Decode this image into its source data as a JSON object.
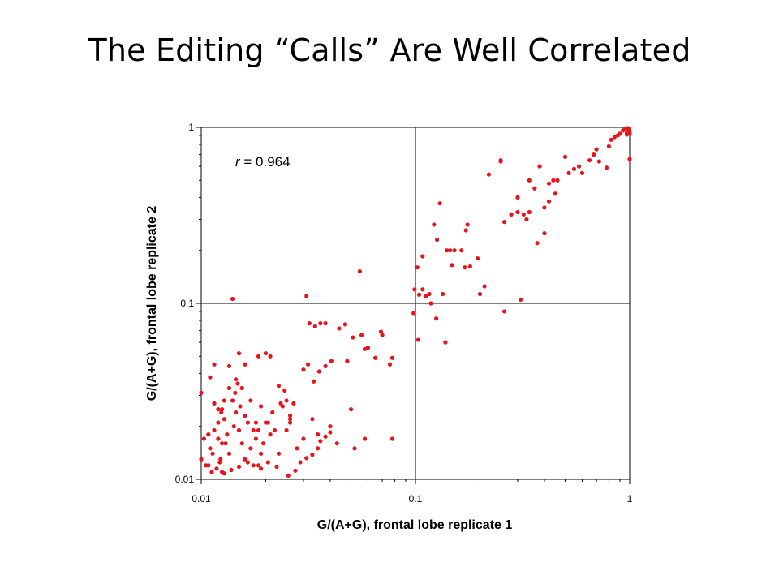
{
  "slide": {
    "title": "The Editing “Calls” Are Well Correlated"
  },
  "chart_data": {
    "type": "scatter",
    "x_scale": "log",
    "y_scale": "log",
    "xlim": [
      0.01,
      1
    ],
    "ylim": [
      0.01,
      1
    ],
    "xlabel": "G/(A+G), frontal lobe replicate 1",
    "ylabel": "G/(A+G), frontal lobe replicate 2",
    "x_tick_labels": [
      "0.01",
      "0.1",
      "1"
    ],
    "y_tick_labels": [
      "0.01",
      "0.1",
      "1"
    ],
    "grid": false,
    "reference_lines": {
      "x": 0.1,
      "y": 0.1
    },
    "annotation": {
      "italic": "r",
      "text": " = 0.964"
    },
    "marker_color": "#e8141b",
    "x": [
      0.01,
      0.01,
      0.0105,
      0.011,
      0.0103,
      0.0108,
      0.0115,
      0.012,
      0.0113,
      0.0125,
      0.0123,
      0.0125,
      0.012,
      0.0128,
      0.0132,
      0.013,
      0.0135,
      0.0142,
      0.0145,
      0.014,
      0.0144,
      0.0152,
      0.016,
      0.015,
      0.0155,
      0.016,
      0.017,
      0.0175,
      0.018,
      0.018,
      0.019,
      0.0185,
      0.02,
      0.021,
      0.0195,
      0.022,
      0.023,
      0.019,
      0.017,
      0.0155,
      0.0148,
      0.0135,
      0.0125,
      0.0115,
      0.0108,
      0.0112,
      0.0118,
      0.0122,
      0.0128,
      0.0138,
      0.015,
      0.0165,
      0.0175,
      0.019,
      0.0205,
      0.0225,
      0.0255,
      0.0275,
      0.029,
      0.031,
      0.033,
      0.035,
      0.036,
      0.038,
      0.04,
      0.03,
      0.028,
      0.026,
      0.025,
      0.0245,
      0.0235,
      0.0215,
      0.03,
      0.0315,
      0.0335,
      0.0355,
      0.038,
      0.0405,
      0.048,
      0.051,
      0.056,
      0.06,
      0.065,
      0.07,
      0.076,
      0.078,
      0.05,
      0.047,
      0.044,
      0.038,
      0.036,
      0.034,
      0.032,
      0.026,
      0.024,
      0.023,
      0.021,
      0.02,
      0.0185,
      0.016,
      0.015,
      0.0145,
      0.0135,
      0.0128,
      0.0124,
      0.012,
      0.0115,
      0.011,
      0.0165,
      0.0185,
      0.0205,
      0.014,
      0.031,
      0.055,
      0.058,
      0.04,
      0.043,
      0.035,
      0.033,
      0.078,
      0.026,
      0.027,
      0.025,
      0.052,
      0.058,
      0.069,
      0.098,
      0.099,
      0.104,
      0.102,
      0.108,
      0.116,
      0.122,
      0.126,
      0.13,
      0.134,
      0.14,
      0.148,
      0.152,
      0.164,
      0.172,
      0.18,
      0.195,
      0.2,
      0.21,
      0.22,
      0.25,
      0.26,
      0.28,
      0.3,
      0.31,
      0.32,
      0.33,
      0.34,
      0.36,
      0.38,
      0.4,
      0.42,
      0.44,
      0.46,
      0.5,
      0.52,
      0.55,
      0.58,
      0.6,
      0.65,
      0.68,
      0.7,
      0.72,
      0.78,
      0.8,
      0.82,
      0.85,
      0.88,
      0.9,
      0.93,
      0.95,
      0.97,
      0.98,
      1.0,
      1.0,
      0.99,
      0.97,
      0.118,
      0.112,
      0.145,
      0.17,
      0.26,
      0.125,
      0.103,
      0.3,
      0.34,
      0.42,
      0.37,
      0.25,
      0.175,
      0.138,
      0.108,
      0.45,
      0.4,
      1.0
    ],
    "y": [
      0.031,
      0.013,
      0.012,
      0.015,
      0.017,
      0.018,
      0.019,
      0.017,
      0.014,
      0.016,
      0.013,
      0.011,
      0.025,
      0.022,
      0.018,
      0.016,
      0.014,
      0.02,
      0.024,
      0.028,
      0.031,
      0.026,
      0.023,
      0.019,
      0.016,
      0.013,
      0.015,
      0.019,
      0.021,
      0.017,
      0.014,
      0.012,
      0.021,
      0.018,
      0.016,
      0.019,
      0.014,
      0.026,
      0.028,
      0.033,
      0.035,
      0.044,
      0.025,
      0.045,
      0.012,
      0.011,
      0.0115,
      0.0125,
      0.0108,
      0.0113,
      0.0118,
      0.0125,
      0.012,
      0.0115,
      0.0125,
      0.0118,
      0.0105,
      0.0112,
      0.0125,
      0.0132,
      0.0138,
      0.015,
      0.0165,
      0.0175,
      0.0185,
      0.017,
      0.015,
      0.022,
      0.028,
      0.032,
      0.027,
      0.024,
      0.042,
      0.045,
      0.036,
      0.041,
      0.044,
      0.047,
      0.047,
      0.064,
      0.066,
      0.056,
      0.049,
      0.066,
      0.045,
      0.049,
      0.025,
      0.076,
      0.072,
      0.077,
      0.077,
      0.074,
      0.077,
      0.023,
      0.026,
      0.034,
      0.05,
      0.052,
      0.05,
      0.045,
      0.052,
      0.037,
      0.033,
      0.028,
      0.024,
      0.021,
      0.027,
      0.038,
      0.021,
      0.019,
      0.021,
      0.106,
      0.11,
      0.152,
      0.017,
      0.02,
      0.016,
      0.018,
      0.022,
      0.017,
      0.021,
      0.027,
      0.019,
      0.015,
      0.055,
      0.069,
      0.088,
      0.12,
      0.112,
      0.16,
      0.185,
      0.113,
      0.28,
      0.23,
      0.37,
      0.113,
      0.2,
      0.165,
      0.2,
      0.2,
      0.26,
      0.162,
      0.18,
      0.113,
      0.125,
      0.54,
      0.65,
      0.29,
      0.32,
      0.33,
      0.105,
      0.32,
      0.3,
      0.5,
      0.45,
      0.6,
      0.25,
      0.38,
      0.5,
      0.5,
      0.68,
      0.55,
      0.58,
      0.6,
      0.55,
      0.65,
      0.7,
      0.75,
      0.64,
      0.59,
      0.78,
      0.85,
      0.88,
      0.9,
      0.92,
      0.96,
      0.98,
      0.93,
      0.99,
      0.95,
      0.92,
      0.98,
      0.91,
      0.1,
      0.11,
      0.2,
      0.16,
      0.09,
      0.082,
      0.062,
      0.4,
      0.33,
      0.48,
      0.22,
      0.64,
      0.28,
      0.06,
      0.12,
      0.42,
      0.35,
      0.66
    ]
  }
}
